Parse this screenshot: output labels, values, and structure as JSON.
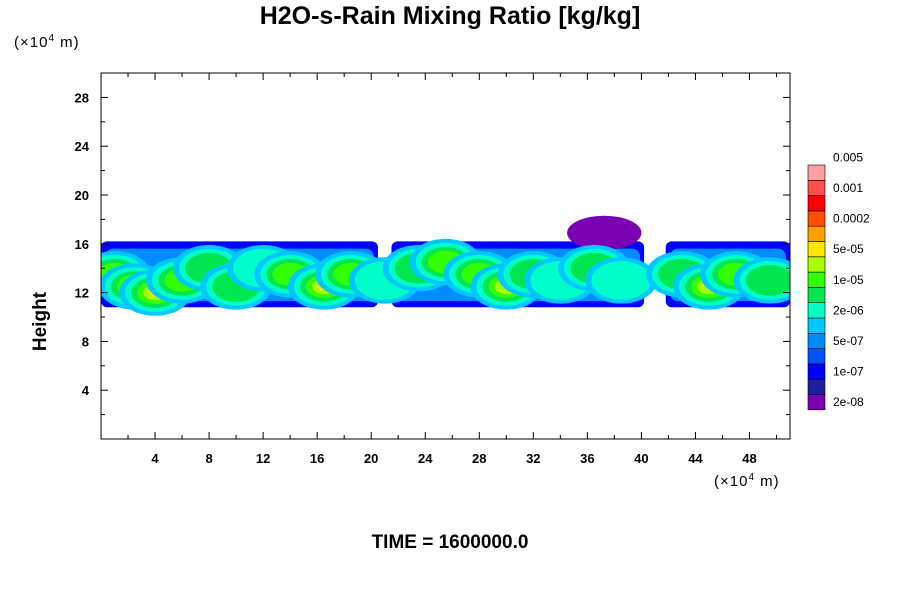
{
  "chart_data": {
    "type": "heatmap",
    "title": "H2O-s-Rain Mixing Ratio [kg/kg]",
    "ylabel": "Height",
    "y_unit": {
      "prefix": "(×10",
      "exp": "4",
      "suffix": " m)"
    },
    "x_unit": {
      "prefix": "(×10",
      "exp": "4",
      "suffix": " m)"
    },
    "xlim": [
      0,
      51
    ],
    "ylim": [
      0,
      30
    ],
    "x_ticks": [
      4,
      8,
      12,
      16,
      20,
      24,
      28,
      32,
      36,
      40,
      44,
      48
    ],
    "y_ticks": [
      4,
      8,
      12,
      16,
      20,
      24,
      28
    ],
    "footer": "TIME = 1600000.0",
    "colorbar": {
      "colors": [
        "#7a00b4",
        "#1e1e9e",
        "#0000ff",
        "#0050ff",
        "#008cff",
        "#00c8ff",
        "#00ffc8",
        "#00e650",
        "#32ff00",
        "#aaff00",
        "#ffe600",
        "#ffa000",
        "#ff5000",
        "#ff0000",
        "#ff5050",
        "#ffa0a0"
      ],
      "labels": [
        "2e-08",
        "1e-07",
        "5e-07",
        "2e-06",
        "1e-05",
        "5e-05",
        "0.0002",
        "0.001",
        "0.005"
      ]
    },
    "field": {
      "description_levels": "contour level index 0-15 per colorbar",
      "cloud_layer_y": [
        10.5,
        16.5
      ],
      "cells": [
        {
          "x": 1.0,
          "y": 13.5,
          "level": 8
        },
        {
          "x": 2.5,
          "y": 12.5,
          "level": 9
        },
        {
          "x": 4.0,
          "y": 12.0,
          "level": 10
        },
        {
          "x": 6.0,
          "y": 13.0,
          "level": 8
        },
        {
          "x": 8.0,
          "y": 14.0,
          "level": 7
        },
        {
          "x": 10.0,
          "y": 12.5,
          "level": 7
        },
        {
          "x": 12.0,
          "y": 14.0,
          "level": 6
        },
        {
          "x": 14.0,
          "y": 13.5,
          "level": 8
        },
        {
          "x": 16.5,
          "y": 12.5,
          "level": 10
        },
        {
          "x": 18.5,
          "y": 13.5,
          "level": 8
        },
        {
          "x": 21.0,
          "y": 13.0,
          "level": 6
        },
        {
          "x": 23.5,
          "y": 14.0,
          "level": 7
        },
        {
          "x": 25.5,
          "y": 14.5,
          "level": 8
        },
        {
          "x": 28.0,
          "y": 13.5,
          "level": 8
        },
        {
          "x": 30.0,
          "y": 12.5,
          "level": 9
        },
        {
          "x": 32.0,
          "y": 13.5,
          "level": 7
        },
        {
          "x": 34.0,
          "y": 13.0,
          "level": 6
        },
        {
          "x": 36.5,
          "y": 14.0,
          "level": 7
        },
        {
          "x": 38.5,
          "y": 13.0,
          "level": 6
        },
        {
          "x": 43.0,
          "y": 13.5,
          "level": 7
        },
        {
          "x": 45.0,
          "y": 12.5,
          "level": 9
        },
        {
          "x": 47.0,
          "y": 13.5,
          "level": 8
        },
        {
          "x": 49.5,
          "y": 13.0,
          "level": 7
        }
      ],
      "anvil": {
        "x": [
          34.5,
          40
        ],
        "y": [
          15.5,
          18.3
        ],
        "level": 0
      }
    }
  }
}
